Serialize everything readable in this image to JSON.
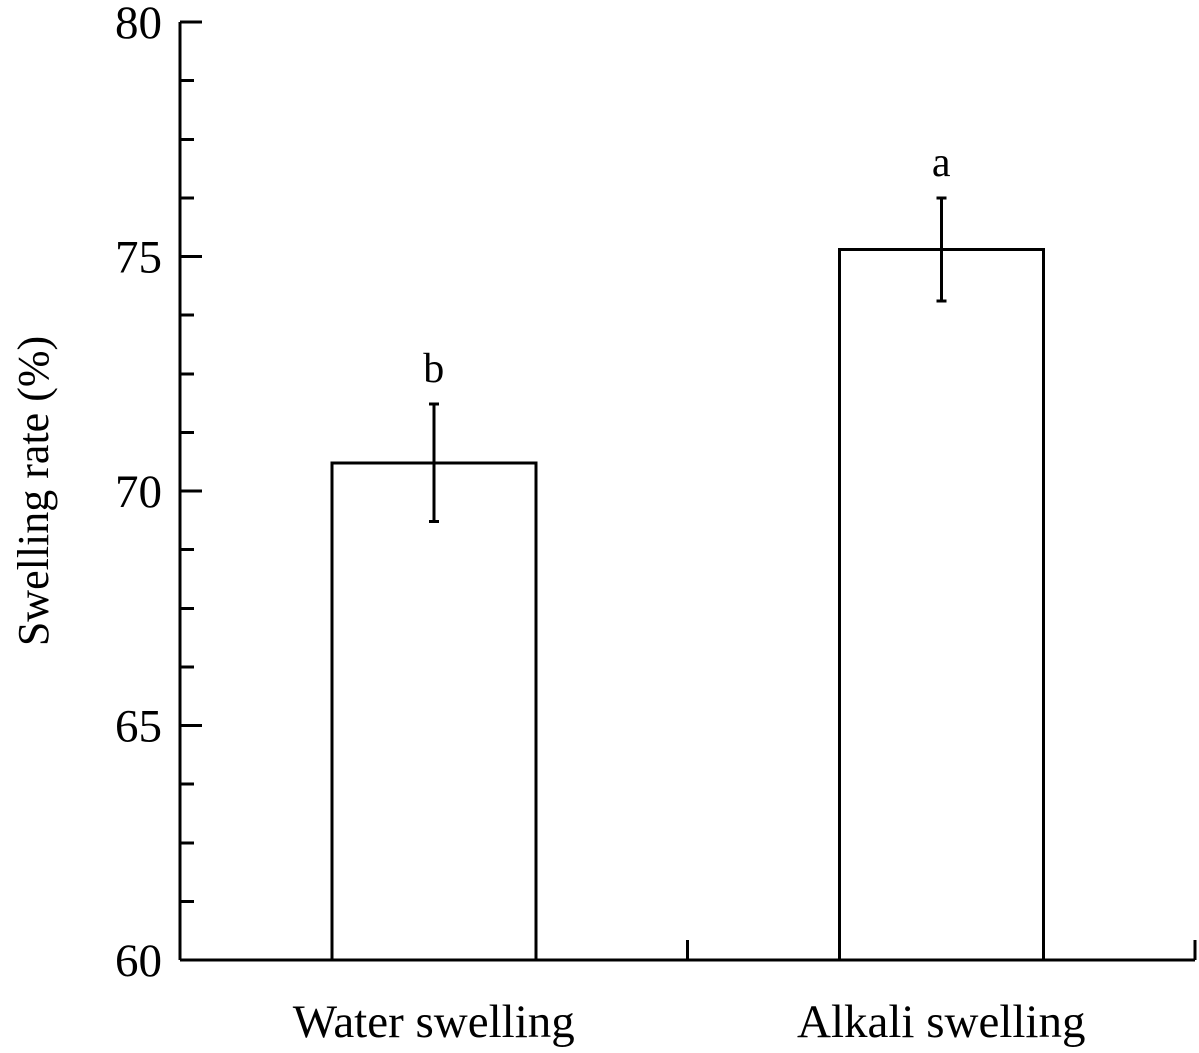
{
  "chart_data": {
    "type": "bar",
    "title": "",
    "xlabel": "",
    "ylabel": "Swelling rate (%)",
    "ylim": [
      60,
      80
    ],
    "major_ticks": [
      60,
      65,
      70,
      75,
      80
    ],
    "minor_tick_step": 1.25,
    "tick_labels": [
      "60",
      "65",
      "70",
      "75",
      "80"
    ],
    "grid": false,
    "legend": "none",
    "categories": [
      "Water swelling",
      "Alkali swelling"
    ],
    "values": [
      70.6,
      75.15
    ],
    "error": [
      1.25,
      1.1
    ],
    "significance": [
      "b",
      "a"
    ],
    "colors": {
      "bar_fill": "#ffffff",
      "stroke": "#000000",
      "text": "#000000"
    }
  }
}
